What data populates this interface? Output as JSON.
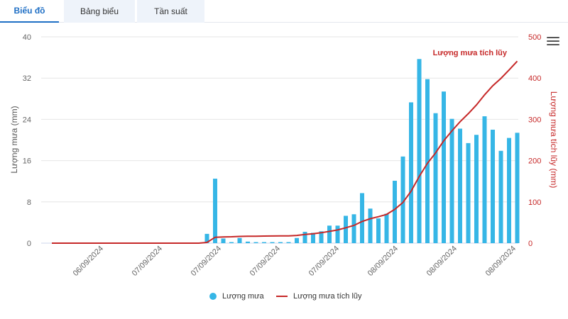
{
  "tabs": [
    {
      "label": "Biểu đồ",
      "active": true
    },
    {
      "label": "Bảng biểu",
      "active": false
    },
    {
      "label": "Tần suất",
      "active": false
    }
  ],
  "colors": {
    "bar": "#36b6e6",
    "line": "#c62828",
    "accent": "#1f6fc5"
  },
  "chart_data": {
    "type": "bar",
    "xlabel": "",
    "ylabel": "Lượng mưa (mm)",
    "y2label": "Lượng mưa tích lũy (mm)",
    "ylim": [
      0,
      40
    ],
    "y2lim": [
      0,
      500
    ],
    "yticks": [
      0,
      8,
      16,
      24,
      32,
      40
    ],
    "y2ticks": [
      0,
      100,
      200,
      300,
      400,
      500
    ],
    "x_tick_labels": [
      "06/09/2024",
      "07/09/2024",
      "07/09/2024",
      "07/09/2024",
      "07/09/2024",
      "08/09/2024",
      "08/09/2024",
      "08/09/2024"
    ],
    "grid": "horizontal",
    "legend_position": "bottom",
    "series": [
      {
        "name": "Lượng mưa",
        "type": "bar",
        "values": [
          0,
          0,
          0,
          0,
          0,
          0,
          0,
          0,
          0,
          0,
          0,
          0,
          0,
          0,
          0,
          0,
          0,
          0,
          0,
          1.8,
          12.5,
          0.9,
          0.2,
          1.0,
          0.3,
          0.2,
          0.2,
          0.2,
          0.2,
          0.2,
          1.0,
          2.2,
          2.0,
          2.3,
          3.4,
          3.4,
          5.3,
          5.6,
          9.7,
          6.7,
          4.8,
          5.7,
          12.1,
          16.8,
          27.3,
          35.7,
          31.8,
          25.2,
          29.4,
          24.1,
          22.2,
          19.4,
          21.0,
          24.6,
          22.0,
          17.9,
          20.4,
          21.4
        ]
      },
      {
        "name": "Lượng mưa tích lũy",
        "type": "line",
        "values": [
          0,
          0,
          0,
          0,
          0,
          0,
          0,
          0,
          0,
          0,
          0,
          0,
          0,
          0,
          0,
          0,
          0,
          0,
          0,
          1.8,
          14.3,
          15.2,
          15.4,
          16.4,
          16.7,
          16.9,
          17.1,
          17.3,
          17.5,
          17.7,
          18.7,
          20.9,
          22.9,
          25.2,
          28.6,
          32.0,
          37.3,
          42.9,
          52.6,
          59.3,
          64.1,
          69.8,
          81.9,
          98.7,
          126.0,
          161.7,
          193.5,
          218.7,
          248.1,
          272.2,
          294.4,
          313.8,
          334.8,
          359.4,
          381.4,
          399.3,
          419.7,
          441.1
        ]
      }
    ],
    "annotations": [
      "Lượng mưa tích lũy"
    ]
  }
}
